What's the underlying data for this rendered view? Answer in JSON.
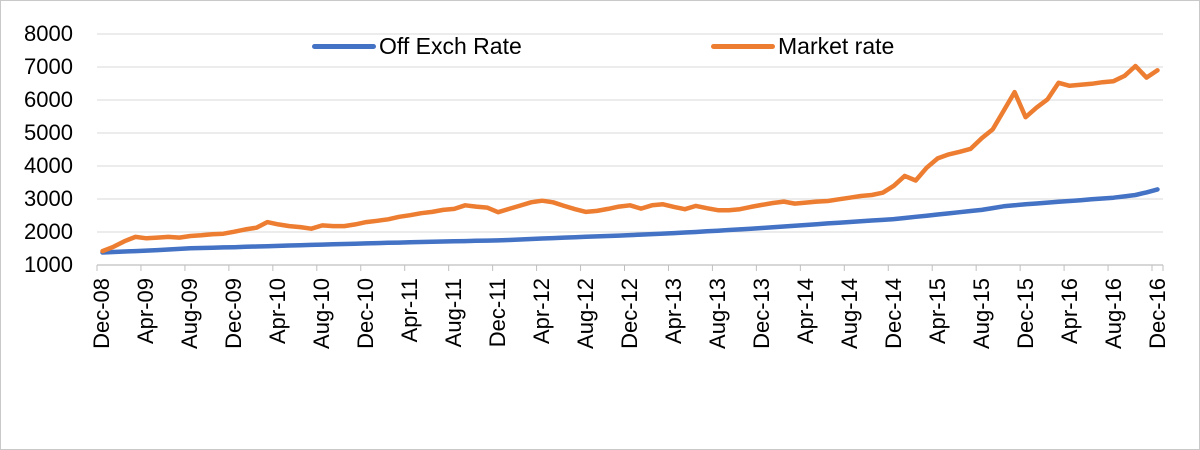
{
  "chart_data": {
    "type": "line",
    "title": "",
    "legend_position": "top",
    "grid": "horizontal",
    "ylim": [
      1000,
      8000
    ],
    "y_ticks": [
      1000,
      2000,
      3000,
      4000,
      5000,
      6000,
      7000,
      8000
    ],
    "x_tick_interval": 4,
    "x_tick_labels": [
      "Dec-08",
      "Apr-09",
      "Aug-09",
      "Dec-09",
      "Apr-10",
      "Aug-10",
      "Dec-10",
      "Apr-11",
      "Aug-11",
      "Dec-11",
      "Apr-12",
      "Aug-12",
      "Dec-12",
      "Apr-13",
      "Aug-13",
      "Dec-13",
      "Apr-14",
      "Aug-14",
      "Dec-14",
      "Apr-15",
      "Aug-15",
      "Dec-15",
      "Apr-16",
      "Aug-16",
      "Dec-16"
    ],
    "x": [
      "Dec-08",
      "Jan-09",
      "Feb-09",
      "Mar-09",
      "Apr-09",
      "May-09",
      "Jun-09",
      "Jul-09",
      "Aug-09",
      "Sep-09",
      "Oct-09",
      "Nov-09",
      "Dec-09",
      "Jan-10",
      "Feb-10",
      "Mar-10",
      "Apr-10",
      "May-10",
      "Jun-10",
      "Jul-10",
      "Aug-10",
      "Sep-10",
      "Oct-10",
      "Nov-10",
      "Dec-10",
      "Jan-11",
      "Feb-11",
      "Mar-11",
      "Apr-11",
      "May-11",
      "Jun-11",
      "Jul-11",
      "Aug-11",
      "Sep-11",
      "Oct-11",
      "Nov-11",
      "Dec-11",
      "Jan-12",
      "Feb-12",
      "Mar-12",
      "Apr-12",
      "May-12",
      "Jun-12",
      "Jul-12",
      "Aug-12",
      "Sep-12",
      "Oct-12",
      "Nov-12",
      "Dec-12",
      "Jan-13",
      "Feb-13",
      "Mar-13",
      "Apr-13",
      "May-13",
      "Jun-13",
      "Jul-13",
      "Aug-13",
      "Sep-13",
      "Oct-13",
      "Nov-13",
      "Dec-13",
      "Jan-14",
      "Feb-14",
      "Mar-14",
      "Apr-14",
      "May-14",
      "Jun-14",
      "Jul-14",
      "Aug-14",
      "Sep-14",
      "Oct-14",
      "Nov-14",
      "Dec-14",
      "Jan-15",
      "Feb-15",
      "Mar-15",
      "Apr-15",
      "May-15",
      "Jun-15",
      "Jul-15",
      "Aug-15",
      "Sep-15",
      "Oct-15",
      "Nov-15",
      "Dec-15",
      "Jan-16",
      "Feb-16",
      "Mar-16",
      "Apr-16",
      "May-16",
      "Jun-16",
      "Jul-16",
      "Aug-16",
      "Sep-16",
      "Oct-16",
      "Nov-16",
      "Dec-16"
    ],
    "series": [
      {
        "name": "Off Exch Rate",
        "color": "#4472C4",
        "values": [
          1380,
          1395,
          1410,
          1422,
          1435,
          1452,
          1470,
          1488,
          1505,
          1514,
          1523,
          1532,
          1540,
          1550,
          1560,
          1570,
          1580,
          1590,
          1600,
          1609,
          1618,
          1627,
          1637,
          1646,
          1655,
          1663,
          1672,
          1680,
          1688,
          1697,
          1705,
          1712,
          1718,
          1725,
          1732,
          1738,
          1745,
          1759,
          1773,
          1787,
          1802,
          1816,
          1830,
          1842,
          1855,
          1867,
          1880,
          1892,
          1905,
          1921,
          1937,
          1952,
          1968,
          1984,
          2000,
          2020,
          2040,
          2060,
          2080,
          2100,
          2120,
          2143,
          2167,
          2190,
          2213,
          2237,
          2260,
          2282,
          2303,
          2325,
          2347,
          2368,
          2390,
          2425,
          2460,
          2495,
          2530,
          2565,
          2600,
          2635,
          2670,
          2725,
          2780,
          2810,
          2840,
          2865,
          2890,
          2915,
          2940,
          2965,
          2990,
          3015,
          3040,
          3080,
          3120,
          3200,
          3290
        ]
      },
      {
        "name": "Market rate",
        "color": "#ED7D31",
        "values": [
          1420,
          1550,
          1720,
          1850,
          1810,
          1830,
          1850,
          1830,
          1880,
          1900,
          1930,
          1950,
          2010,
          2080,
          2130,
          2300,
          2230,
          2180,
          2150,
          2100,
          2200,
          2180,
          2180,
          2230,
          2300,
          2340,
          2385,
          2460,
          2510,
          2570,
          2610,
          2670,
          2700,
          2810,
          2770,
          2740,
          2600,
          2700,
          2800,
          2900,
          2950,
          2900,
          2790,
          2690,
          2610,
          2640,
          2700,
          2770,
          2810,
          2710,
          2810,
          2840,
          2760,
          2690,
          2790,
          2720,
          2660,
          2660,
          2690,
          2760,
          2820,
          2880,
          2920,
          2860,
          2890,
          2920,
          2940,
          2990,
          3040,
          3090,
          3120,
          3190,
          3400,
          3700,
          3560,
          3950,
          4230,
          4350,
          4430,
          4520,
          4840,
          5110,
          5670,
          6240,
          5480,
          5770,
          6020,
          6520,
          6430,
          6460,
          6490,
          6540,
          6570,
          6730,
          7030,
          6680,
          6900
        ]
      }
    ]
  },
  "colors": {
    "gridline": "#D9D9D9",
    "axis": "#BFBFBF",
    "tick": "#BFBFBF",
    "text": "#000000"
  }
}
